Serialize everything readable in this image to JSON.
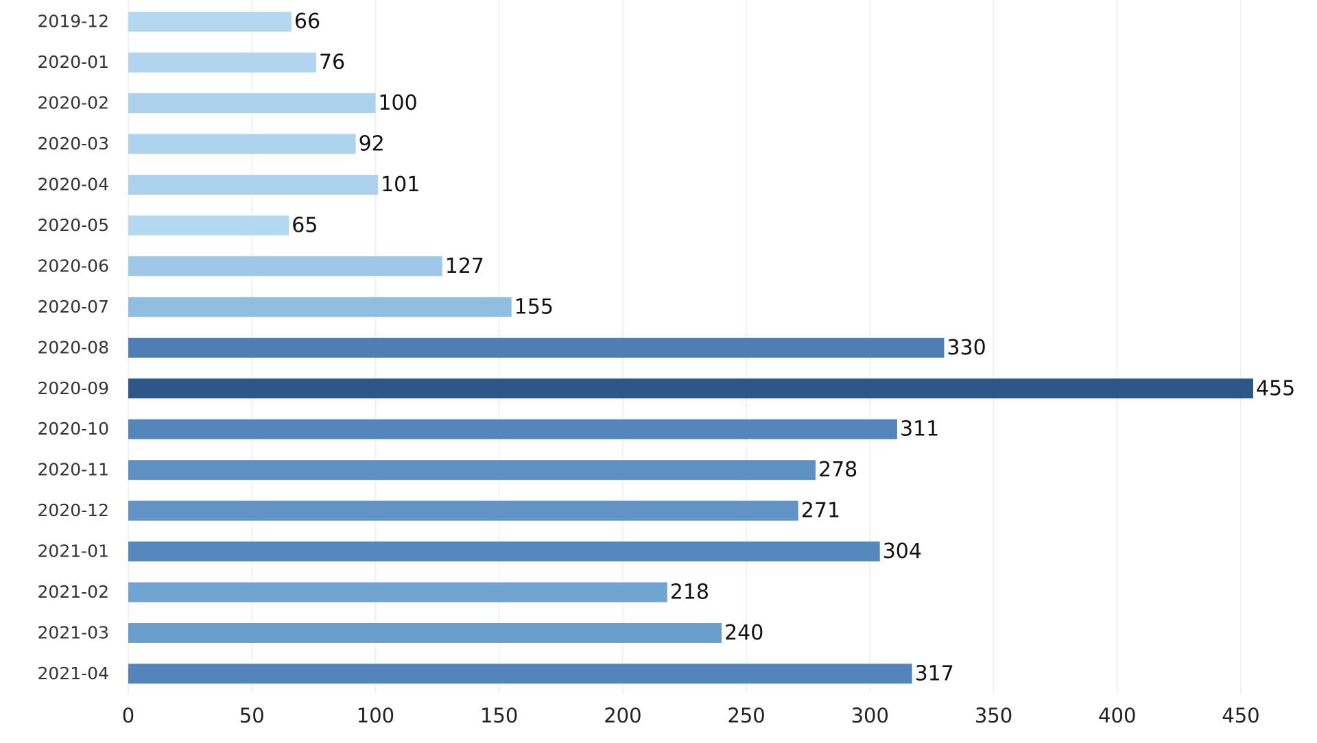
{
  "chart_data": {
    "type": "hbar",
    "categories": [
      "2019-12",
      "2020-01",
      "2020-02",
      "2020-03",
      "2020-04",
      "2020-05",
      "2020-06",
      "2020-07",
      "2020-08",
      "2020-09",
      "2020-10",
      "2020-11",
      "2020-12",
      "2021-01",
      "2021-02",
      "2021-03",
      "2021-04"
    ],
    "values": [
      66,
      76,
      100,
      92,
      101,
      65,
      127,
      155,
      330,
      455,
      311,
      278,
      271,
      304,
      218,
      240,
      317
    ],
    "colors": [
      "#b4d8ef",
      "#b1d5ee",
      "#abd1ec",
      "#aed3ed",
      "#abd1ec",
      "#b4d8ef",
      "#9fc8e7",
      "#8fbee1",
      "#4e7eb4",
      "#2d5786",
      "#5486bc",
      "#5e91c3",
      "#6194c4",
      "#5587bd",
      "#70a5d2",
      "#6a9fcc",
      "#5385bb"
    ],
    "xlim": [
      0,
      460
    ],
    "xticks": [
      0,
      50,
      100,
      150,
      200,
      250,
      300,
      350,
      400,
      450
    ],
    "grid": true
  }
}
